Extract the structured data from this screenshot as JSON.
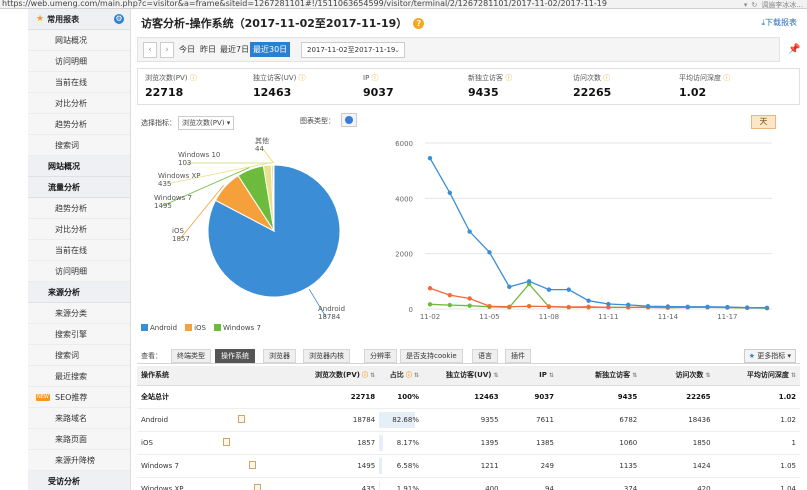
{
  "browser": {
    "url": "https://web.umeng.com/main.php?c=visitor&a=frame&siteid=1267281101#!/1511063654599/visitor/terminal/2/1267281101/2017-11-02/2017-11-19",
    "tab_hint": "调遍李冰冰..."
  },
  "sidebar": {
    "top_label": "常用报表",
    "top_items": [
      "网站概况",
      "访问明细",
      "当前在线",
      "对比分析",
      "趋势分析",
      "搜索词"
    ],
    "sections": [
      {
        "label": "网站概况",
        "items": []
      },
      {
        "label": "流量分析",
        "items": [
          "趋势分析",
          "对比分析",
          "当前在线",
          "访问明细"
        ]
      },
      {
        "label": "来源分析",
        "items": [
          "来源分类",
          "搜索引擎",
          "搜索词",
          "最近搜索",
          "SEO推荐",
          "来路域名",
          "来路页面",
          "来源升降榜"
        ]
      },
      {
        "label": "受访分析",
        "items": []
      }
    ],
    "new_badge": "NEW"
  },
  "header": {
    "title": "访客分析-操作系统（2017-11-02至2017-11-19）",
    "help": "?",
    "download": "下载报表"
  },
  "datebar": {
    "prev": "‹",
    "next": "›",
    "ranges": [
      "今日",
      "昨日",
      "最近7日",
      "最近30日"
    ],
    "active_range": "最近30日",
    "date_value": "2017-11-02至2017-11-19"
  },
  "metrics": [
    {
      "label": "浏览次数(PV)",
      "value": "22718"
    },
    {
      "label": "独立访客(UV)",
      "value": "12463"
    },
    {
      "label": "IP",
      "value": "9037"
    },
    {
      "label": "新独立访客",
      "value": "9435"
    },
    {
      "label": "访问次数",
      "value": "22265"
    },
    {
      "label": "平均访问深度",
      "value": "1.02"
    }
  ],
  "controls": {
    "select_metric_label": "选择指标：",
    "selected_metric": "浏览次数(PV)",
    "chart_type_label": "图表类型：",
    "day_button": "天"
  },
  "chart_data": [
    {
      "type": "pie",
      "labels": [
        "Android",
        "iOS",
        "Windows 7",
        "Windows XP",
        "Windows 10",
        "其他"
      ],
      "values": [
        18784,
        1857,
        1495,
        435,
        103,
        44
      ],
      "colors": [
        "#3b8ed6",
        "#f5a03a",
        "#6dbb3c",
        "#e8e08a",
        "#c6d86a",
        "#f4d25c"
      ],
      "legend": [
        "Android",
        "iOS",
        "Windows 7"
      ]
    },
    {
      "type": "line",
      "x": [
        "11-02",
        "11-03",
        "11-04",
        "11-05",
        "11-06",
        "11-07",
        "11-08",
        "11-09",
        "11-10",
        "11-11",
        "11-12",
        "11-13",
        "11-14",
        "11-15",
        "11-16",
        "11-17",
        "11-18",
        "11-19"
      ],
      "xticks": [
        "11-02",
        "11-05",
        "11-08",
        "11-11",
        "11-14",
        "11-17"
      ],
      "ylim": [
        0,
        6000
      ],
      "yticks": [
        0,
        2000,
        4000,
        6000
      ],
      "series": [
        {
          "name": "Android",
          "color": "#3b8ed6",
          "values": [
            5450,
            4200,
            2800,
            2050,
            800,
            1000,
            700,
            700,
            300,
            180,
            150,
            100,
            90,
            80,
            80,
            70,
            50,
            40
          ]
        },
        {
          "name": "iOS",
          "color": "#f06a3a",
          "values": [
            750,
            500,
            380,
            100,
            80,
            100,
            90,
            70,
            80,
            60,
            60,
            60,
            50,
            60,
            60,
            60,
            50,
            40
          ]
        },
        {
          "name": "Windows 7",
          "color": "#6dbb3c",
          "values": [
            170,
            140,
            120,
            80,
            60,
            900,
            80,
            60,
            60,
            60,
            60,
            60,
            50,
            60,
            60,
            50,
            40,
            30
          ]
        }
      ]
    }
  ],
  "tabs": {
    "lead": "查看：",
    "items": [
      "终端类型",
      "操作系统",
      "浏览器",
      "浏览器内核",
      "分辨率",
      "是否支持cookie",
      "语言",
      "插件"
    ],
    "active": "操作系统",
    "more": "更多指标"
  },
  "table": {
    "headers": [
      "操作系统",
      "浏览次数(PV)",
      "占比",
      "独立访客(UV)",
      "IP",
      "新独立访客",
      "访问次数",
      "平均访问深度"
    ],
    "total": [
      "全站总计",
      "22718",
      "100%",
      "12463",
      "9037",
      "9435",
      "22265",
      "1.02"
    ],
    "rows": [
      {
        "name": "Android",
        "pv": "18784",
        "share": "82.68%",
        "share_value": 82.68,
        "uv": "9355",
        "ip": "7611",
        "new_uv": "6782",
        "visits": "18436",
        "depth": "1.02"
      },
      {
        "name": "iOS",
        "pv": "1857",
        "share": "8.17%",
        "share_value": 8.17,
        "uv": "1395",
        "ip": "1385",
        "new_uv": "1060",
        "visits": "1850",
        "depth": "1"
      },
      {
        "name": "Windows 7",
        "pv": "1495",
        "share": "6.58%",
        "share_value": 6.58,
        "uv": "1211",
        "ip": "249",
        "new_uv": "1135",
        "visits": "1424",
        "depth": "1.05"
      },
      {
        "name": "Windows XP",
        "pv": "435",
        "share": "1.91%",
        "share_value": 1.91,
        "uv": "400",
        "ip": "94",
        "new_uv": "374",
        "visits": "420",
        "depth": "1.04"
      }
    ]
  }
}
